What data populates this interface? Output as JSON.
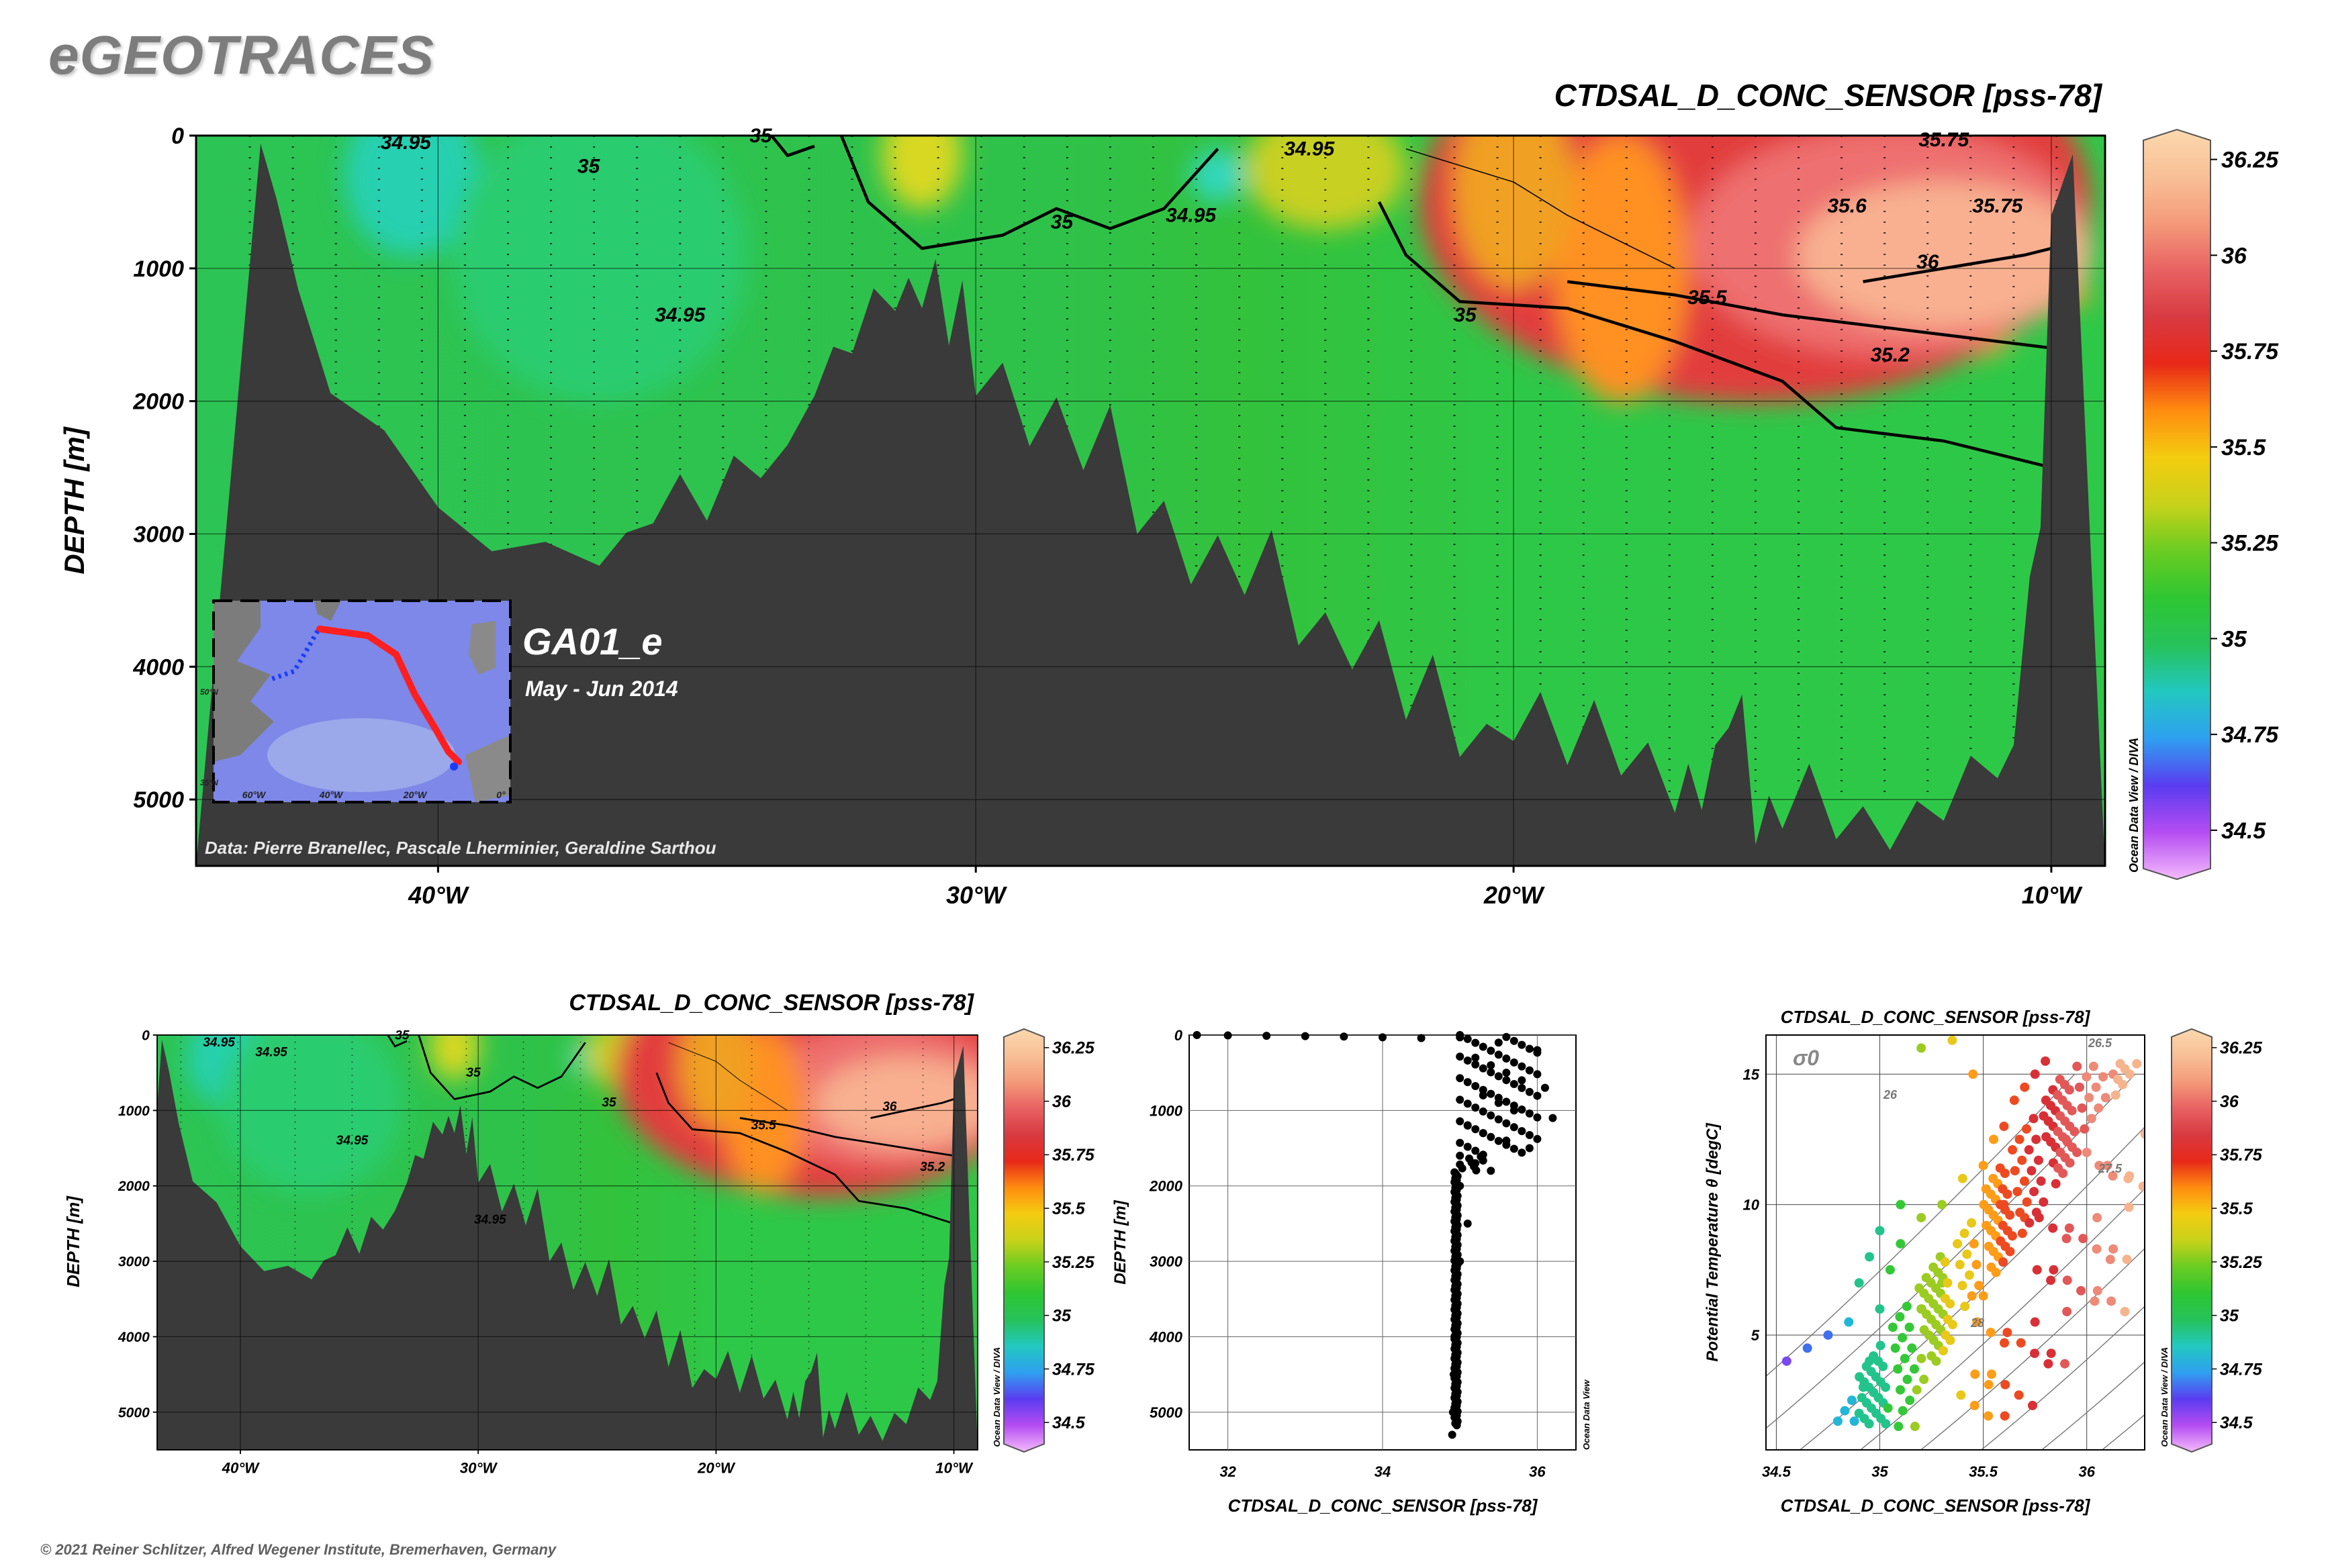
{
  "app": {
    "logo": "eGEOTRACES",
    "copyright": "© 2021 Reiner Schlitzer, Alfred Wegener Institute, Bremerhaven, Germany",
    "odv_credit": "Ocean Data View / DIVA",
    "odv_credit_short": "Ocean Data View"
  },
  "colors": {
    "seafloor": "#3a3a3a",
    "frame": "#000000",
    "inset_track": "#ff1f1f",
    "inset_track_start": "#1a3cff"
  },
  "colorbar": {
    "ticks": [
      "36.25",
      "36",
      "35.75",
      "35.5",
      "35.25",
      "35",
      "34.75",
      "34.5"
    ],
    "stops": [
      "#f4bafc",
      "#b44cf2",
      "#5a3cf0",
      "#2ea0f0",
      "#22c8c0",
      "#26c25a",
      "#2ec632",
      "#6acc22",
      "#c8d21a",
      "#f4cc10",
      "#ff8c10",
      "#e82818",
      "#d83a42",
      "#e86262",
      "#f49a7a",
      "#f8c096",
      "#fcd8ae"
    ]
  },
  "section": {
    "title": "CTDSAL_D_CONC_SENSOR [pss-78]",
    "ylabel": "DEPTH [m]",
    "cruise": "GA01_e",
    "period": "May - Jun 2014",
    "credit": "Data: Pierre Branellec, Pascale Lherminier, Geraldine Sarthou",
    "contour_labels": [
      "34.95",
      "35",
      "35",
      "35",
      "34.95",
      "34.95",
      "34.95",
      "35.6",
      "35.75",
      "36",
      "35.5",
      "35.2",
      "35",
      "35.75"
    ]
  },
  "inset": {
    "lon_labels": [
      "60°W",
      "40°W",
      "20°W",
      "0°"
    ],
    "lat_labels": [
      "50°N",
      "35°N"
    ]
  },
  "small_section": {
    "title": "CTDSAL_D_CONC_SENSOR [pss-78]",
    "ylabel": "DEPTH [m]",
    "contour_labels": [
      "34.95",
      "34.95",
      "35",
      "35",
      "35",
      "35.5",
      "36",
      "35.2",
      "34.95",
      "34.95"
    ]
  },
  "profile": {
    "xlabel": "CTDSAL_D_CONC_SENSOR [pss-78]",
    "ylabel": "DEPTH [m]"
  },
  "ts": {
    "title": "CTDSAL_D_CONC_SENSOR [pss-78]",
    "xlabel": "CTDSAL_D_CONC_SENSOR [pss-78]",
    "ylabel": "Potential Temperature θ [degC]",
    "sigma_label": "σ0",
    "isopycnal_labels": [
      "26.5",
      "26",
      "27.5",
      "28"
    ]
  },
  "chart_data": [
    {
      "id": "section-main",
      "type": "heatmap",
      "title": "CTDSAL_D_CONC_SENSOR [pss-78]",
      "xlabel": "",
      "ylabel": "DEPTH [m]",
      "xlim": [
        -44.5,
        -9
      ],
      "ylim": [
        5500,
        0
      ],
      "x_ticks": [
        -40,
        -30,
        -20,
        -10
      ],
      "x_tick_labels": [
        "40°W",
        "30°W",
        "20°W",
        "10°W"
      ],
      "y_ticks": [
        0,
        1000,
        2000,
        3000,
        4000,
        5000
      ],
      "y_tick_labels": [
        "0",
        "1000",
        "2000",
        "3000",
        "4000",
        "5000"
      ],
      "colorbar_range": [
        34.4,
        36.3
      ],
      "bathymetry": {
        "lon": [
          -44.5,
          -43.3,
          -43.0,
          -42.6,
          -42.0,
          -41.0,
          -40.0,
          -39.0,
          -38.0,
          -37.0,
          -36.0,
          -35.0,
          -34.0,
          -33.0,
          -32.3,
          -31.5,
          -31.0,
          -30.5,
          -30.0,
          -29.0,
          -28.0,
          -27.0,
          -26.0,
          -25.0,
          -24.0,
          -23.0,
          -22.0,
          -21.0,
          -20.0,
          -19.0,
          -18.0,
          -17.0,
          -16.5,
          -16.0,
          -15.5,
          -15.0,
          -14.0,
          -13.0,
          -12.0,
          -11.0,
          -10.4,
          -10.0,
          -9.6,
          -9.0
        ],
        "depth": [
          5500,
          60,
          400,
          1200,
          1900,
          2300,
          2800,
          3050,
          3100,
          3200,
          3000,
          2900,
          2500,
          2000,
          1600,
          1400,
          1300,
          1500,
          2000,
          2300,
          2600,
          3000,
          3300,
          3500,
          3800,
          4100,
          4400,
          4600,
          4600,
          4700,
          4900,
          5100,
          5000,
          4500,
          5300,
          5300,
          5300,
          5300,
          5200,
          4800,
          3400,
          600,
          60,
          5500
        ]
      },
      "contours": [
        {
          "level": 35,
          "points": [
            [
              -33.8,
              0
            ],
            [
              -33.5,
              150
            ],
            [
              -33.0,
              80
            ]
          ]
        },
        {
          "level": 35,
          "points": [
            [
              -32.5,
              0
            ],
            [
              -32.0,
              500
            ],
            [
              -31.0,
              850
            ],
            [
              -29.5,
              750
            ],
            [
              -28.5,
              550
            ],
            [
              -27.5,
              700
            ],
            [
              -26.5,
              550
            ],
            [
              -25.5,
              100
            ]
          ]
        },
        {
          "level": 35,
          "points": [
            [
              -22.5,
              500
            ],
            [
              -22.0,
              900
            ],
            [
              -21.0,
              1250
            ],
            [
              -19.0,
              1300
            ],
            [
              -17.0,
              1550
            ],
            [
              -15.0,
              1850
            ],
            [
              -14.0,
              2200
            ],
            [
              -12.0,
              2300
            ],
            [
              -10.0,
              2500
            ]
          ]
        },
        {
          "level": 35.5,
          "points": [
            [
              -19.0,
              1100
            ],
            [
              -17.0,
              1200
            ],
            [
              -15.0,
              1350
            ],
            [
              -13.0,
              1450
            ],
            [
              -11.0,
              1550
            ],
            [
              -10.0,
              1600
            ]
          ]
        },
        {
          "level": 36,
          "points": [
            [
              -13.5,
              1100
            ],
            [
              -12.0,
              1000
            ],
            [
              -10.5,
              900
            ],
            [
              -10.0,
              850
            ]
          ]
        },
        {
          "level": 35.6,
          "points": [
            [
              -22.0,
              100
            ],
            [
              -20.0,
              350
            ],
            [
              -19.0,
              600
            ],
            [
              -17.0,
              1000
            ]
          ]
        }
      ],
      "series": [
        {
          "name": "",
          "depth_m": [
            0,
            500,
            1000,
            1500,
            2000,
            3000,
            4000,
            5000
          ],
          "x": [
            -42,
            -36,
            -30,
            -24,
            -18,
            -14,
            -11,
            -10
          ]
        }
      ]
    },
    {
      "id": "section-small",
      "type": "heatmap",
      "title": "CTDSAL_D_CONC_SENSOR [pss-78]",
      "ylabel": "DEPTH [m]",
      "xlim": [
        -43.5,
        -9
      ],
      "ylim": [
        5500,
        0
      ],
      "x_ticks": [
        -40,
        -30,
        -20,
        -10
      ],
      "x_tick_labels": [
        "40°W",
        "30°W",
        "20°W",
        "10°W"
      ],
      "y_ticks": [
        0,
        1000,
        2000,
        3000,
        4000,
        5000
      ],
      "y_tick_labels": [
        "0",
        "1000",
        "2000",
        "3000",
        "4000",
        "5000"
      ],
      "colorbar_range": [
        34.4,
        36.3
      ]
    },
    {
      "id": "profile",
      "type": "scatter",
      "xlabel": "CTDSAL_D_CONC_SENSOR [pss-78]",
      "ylabel": "DEPTH [m]",
      "xlim": [
        31.5,
        36.5
      ],
      "ylim": [
        5500,
        0
      ],
      "x_ticks": [
        32,
        34,
        36
      ],
      "y_ticks": [
        0,
        1000,
        2000,
        3000,
        4000,
        5000
      ],
      "series": [
        {
          "name": "",
          "x": [
            31.6,
            32.0,
            32.5,
            33.0,
            33.5,
            34.0,
            34.5,
            35.0,
            35.5,
            36.0,
            35.2,
            35.4,
            35.6,
            35.8,
            36.1,
            35.3,
            35.5,
            35.7,
            36.2,
            35.1,
            35.3,
            35.6,
            35.9,
            35.0,
            35.2,
            35.4,
            35.0,
            35.1,
            35.0,
            34.95,
            34.93,
            34.92,
            34.91,
            34.9
          ],
          "y": [
            0,
            5,
            10,
            15,
            20,
            30,
            40,
            30,
            100,
            200,
            300,
            400,
            500,
            600,
            700,
            800,
            900,
            1000,
            1100,
            1200,
            1300,
            1400,
            1500,
            1600,
            1700,
            1800,
            2000,
            2500,
            3000,
            3500,
            4000,
            4500,
            5000,
            5300
          ]
        }
      ]
    },
    {
      "id": "ts-diagram",
      "type": "scatter",
      "title": "CTDSAL_D_CONC_SENSOR [pss-78]",
      "xlabel": "CTDSAL_D_CONC_SENSOR [pss-78]",
      "ylabel": "Potential Temperature θ [degC]",
      "xlim": [
        34.45,
        36.28
      ],
      "ylim": [
        0.6,
        16.5
      ],
      "x_ticks": [
        34.5,
        35,
        35.5,
        36
      ],
      "y_ticks": [
        5,
        10,
        15
      ],
      "isopycnals": [
        26,
        26.5,
        27.5,
        28
      ],
      "series": [
        {
          "name": "",
          "x": [
            34.55,
            34.65,
            34.75,
            34.85,
            34.9,
            34.92,
            34.95,
            35.0,
            35.05,
            35.1,
            35.2,
            35.3,
            35.4,
            35.5,
            35.55,
            35.6,
            35.65,
            35.7,
            35.75,
            35.8,
            35.9,
            36.0,
            36.1,
            36.2,
            34.9,
            34.95,
            35.0,
            35.1,
            35.2,
            35.35,
            35.45,
            35.6,
            35.7,
            35.2,
            35.3,
            35.5
          ],
          "y": [
            4.0,
            4.5,
            5.0,
            5.5,
            2.0,
            3.0,
            4.0,
            6.0,
            7.5,
            8.5,
            9.5,
            10.0,
            11.0,
            11.5,
            12.5,
            13.0,
            14.0,
            14.5,
            15.0,
            15.5,
            12.5,
            12.0,
            11.5,
            11.0,
            7.0,
            8.0,
            9.0,
            10.0,
            16.0,
            16.3,
            15.0,
            10.0,
            9.5,
            6.0,
            7.0,
            6.5
          ]
        }
      ]
    }
  ]
}
